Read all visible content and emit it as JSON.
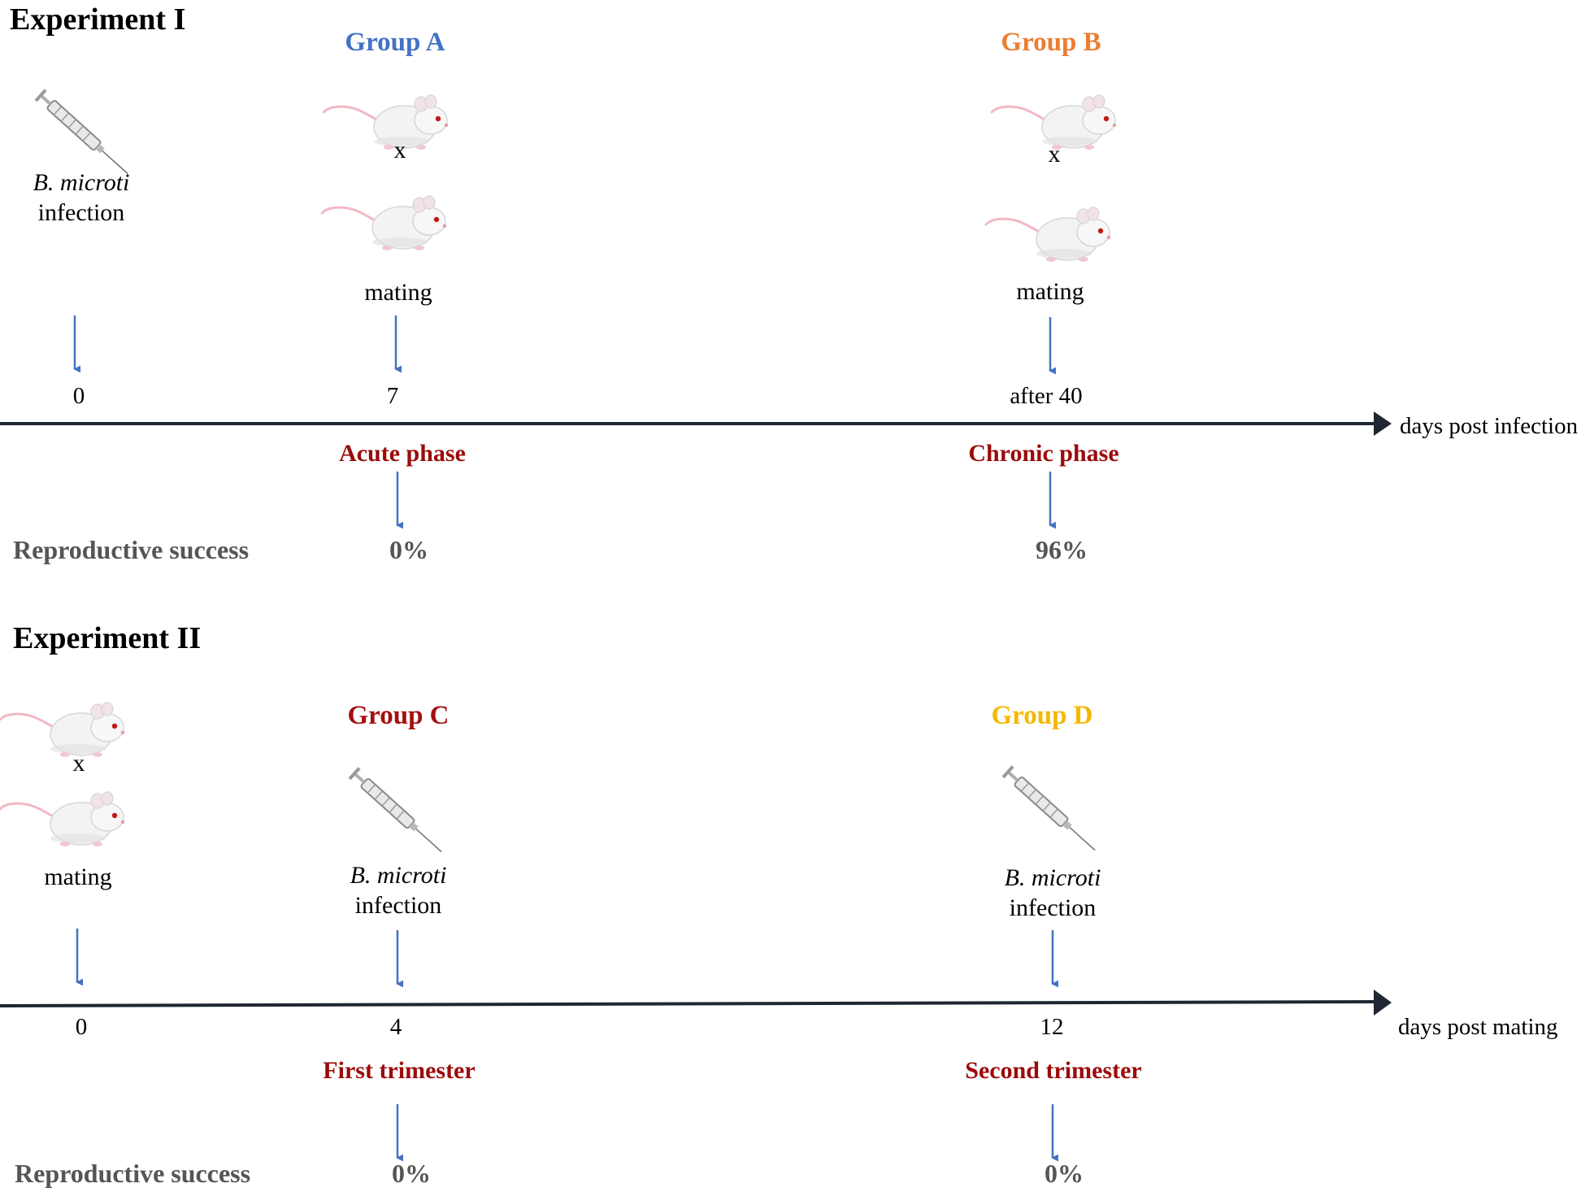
{
  "experiment1": {
    "title": "Experiment I",
    "group_a": "Group A",
    "group_b": "Group B",
    "infection_species": "B. microti",
    "infection_word": "infection",
    "cross_a": "x",
    "cross_b": "x",
    "mating_a": "mating",
    "mating_b": "mating",
    "ticks": [
      "0",
      "7",
      "after 40"
    ],
    "axis_label": "days post infection",
    "phase_acute": "Acute phase",
    "phase_chronic": "Chronic phase",
    "rs_label": "Reproductive success",
    "rs_acute": "0%",
    "rs_chronic": "96%"
  },
  "experiment2": {
    "title": "Experiment II",
    "cross": "x",
    "mating": "mating",
    "group_c": "Group C",
    "group_d": "Group D",
    "infection_species_c": "B. microti",
    "infection_word_c": "infection",
    "infection_species_d": "B. microti",
    "infection_word_d": "infection",
    "ticks": [
      "0",
      "4",
      "12"
    ],
    "axis_label": "days post mating",
    "phase_first": "First trimester",
    "phase_second": "Second trimester",
    "rs_label": "Reproductive success",
    "rs_first": "0%",
    "rs_second": "0%"
  },
  "colors": {
    "group_a": "#4472c4",
    "group_b": "#ed7d31",
    "group_c": "#a50f0f",
    "group_d": "#f5b800",
    "phase": "#9b0a0a",
    "arrow": "#4472c4",
    "axis": "#1f2733",
    "muted_text": "#555555"
  },
  "icons": [
    "syringe-icon",
    "mouse-icon"
  ]
}
